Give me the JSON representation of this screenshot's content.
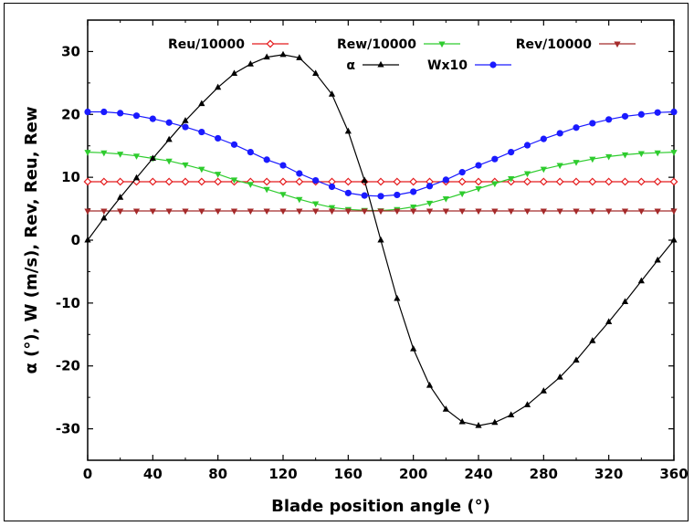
{
  "chart_data": {
    "type": "line",
    "title": "",
    "xlabel": "Blade position angle (°)",
    "ylabel": "α (°), W (m/s), Rev, Reu, Rew",
    "xlim": [
      0,
      360
    ],
    "ylim": [
      -35,
      35
    ],
    "xticks": [
      "0",
      "40",
      "80",
      "120",
      "160",
      "200",
      "240",
      "280",
      "320",
      "360"
    ],
    "yticks": [
      "-30",
      "-20",
      "-10",
      "0",
      "10",
      "20",
      "30"
    ],
    "grid": false,
    "legend_placement": "top-right",
    "legend_layout": "two-rows",
    "x": [
      0,
      10,
      20,
      30,
      40,
      50,
      60,
      70,
      80,
      90,
      100,
      110,
      120,
      130,
      140,
      150,
      160,
      170,
      180,
      190,
      200,
      210,
      220,
      230,
      240,
      250,
      260,
      270,
      280,
      290,
      300,
      310,
      320,
      330,
      340,
      350,
      360
    ],
    "series": [
      {
        "name": "Reu/10000",
        "color": "#e41a1c",
        "marker": "diamond",
        "values": [
          9.3,
          9.3,
          9.3,
          9.3,
          9.3,
          9.3,
          9.3,
          9.3,
          9.3,
          9.3,
          9.3,
          9.3,
          9.3,
          9.3,
          9.3,
          9.3,
          9.3,
          9.3,
          9.3,
          9.3,
          9.3,
          9.3,
          9.3,
          9.3,
          9.3,
          9.3,
          9.3,
          9.3,
          9.3,
          9.3,
          9.3,
          9.3,
          9.3,
          9.3,
          9.3,
          9.3,
          9.3
        ]
      },
      {
        "name": "Rew/10000",
        "color": "#2ecc2e",
        "marker": "triangle-down",
        "values": [
          14.0,
          13.9,
          13.7,
          13.4,
          13.0,
          12.6,
          12.0,
          11.3,
          10.5,
          9.6,
          8.9,
          8.1,
          7.3,
          6.5,
          5.8,
          5.2,
          4.9,
          4.75,
          4.7,
          4.9,
          5.3,
          5.9,
          6.6,
          7.4,
          8.2,
          9.0,
          9.8,
          10.6,
          11.3,
          11.9,
          12.4,
          12.9,
          13.3,
          13.6,
          13.8,
          13.9,
          14.0
        ]
      },
      {
        "name": "Rev/10000",
        "color": "#a52a2a",
        "marker": "triangle-down",
        "values": [
          4.65,
          4.65,
          4.65,
          4.65,
          4.65,
          4.65,
          4.65,
          4.65,
          4.65,
          4.65,
          4.65,
          4.65,
          4.65,
          4.65,
          4.65,
          4.65,
          4.65,
          4.65,
          4.65,
          4.65,
          4.65,
          4.65,
          4.65,
          4.65,
          4.65,
          4.65,
          4.65,
          4.65,
          4.65,
          4.65,
          4.65,
          4.65,
          4.65,
          4.65,
          4.65,
          4.65,
          4.65
        ]
      },
      {
        "name": "α",
        "color": "#000000",
        "marker": "triangle-up",
        "values": [
          0,
          3.5,
          6.8,
          9.9,
          13.0,
          16.0,
          19.0,
          21.7,
          24.3,
          26.5,
          28.0,
          29.1,
          29.5,
          29.0,
          26.5,
          23.2,
          17.3,
          9.5,
          0,
          -9.3,
          -17.3,
          -23.1,
          -26.9,
          -28.9,
          -29.5,
          -29.0,
          -27.8,
          -26.2,
          -24.0,
          -21.8,
          -19.1,
          -16.0,
          -13.0,
          -9.8,
          -6.5,
          -3.2,
          0
        ]
      },
      {
        "name": "Wx10",
        "color": "#1a1aff",
        "marker": "circle",
        "values": [
          20.4,
          20.4,
          20.2,
          19.8,
          19.3,
          18.7,
          18.0,
          17.2,
          16.2,
          15.2,
          14.0,
          12.8,
          11.9,
          10.6,
          9.5,
          8.5,
          7.5,
          7.1,
          7.0,
          7.2,
          7.7,
          8.6,
          9.6,
          10.8,
          11.9,
          12.9,
          14.0,
          15.1,
          16.1,
          17.0,
          17.9,
          18.6,
          19.2,
          19.7,
          20.0,
          20.3,
          20.4
        ]
      }
    ]
  }
}
